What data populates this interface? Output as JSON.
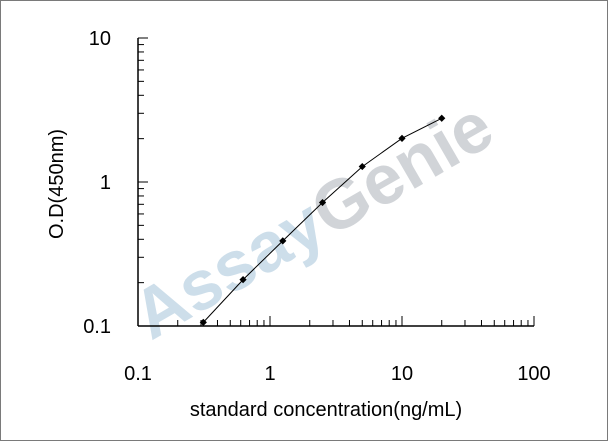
{
  "chart_data": {
    "type": "line",
    "xlabel": "standard concentration(ng/mL)",
    "ylabel": "O.D(450nm)",
    "x_scale": "log",
    "y_scale": "log",
    "xlim": [
      0.1,
      100
    ],
    "ylim": [
      0.1,
      10
    ],
    "x_tick_labels": [
      "0.1",
      "1",
      "10",
      "100"
    ],
    "y_tick_labels": [
      "0.1",
      "1",
      "10"
    ],
    "grid": false,
    "series": [
      {
        "x": [
          0.3125,
          0.625,
          1.25,
          2.5,
          5,
          10,
          20
        ],
        "y": [
          0.106,
          0.21,
          0.39,
          0.72,
          1.28,
          2.01,
          2.77
        ],
        "color": "#000000",
        "marker": "diamond"
      }
    ],
    "watermark": {
      "text": "AssayGenie",
      "colors": [
        "#bcd3e3",
        "#c9cdd1"
      ]
    }
  }
}
